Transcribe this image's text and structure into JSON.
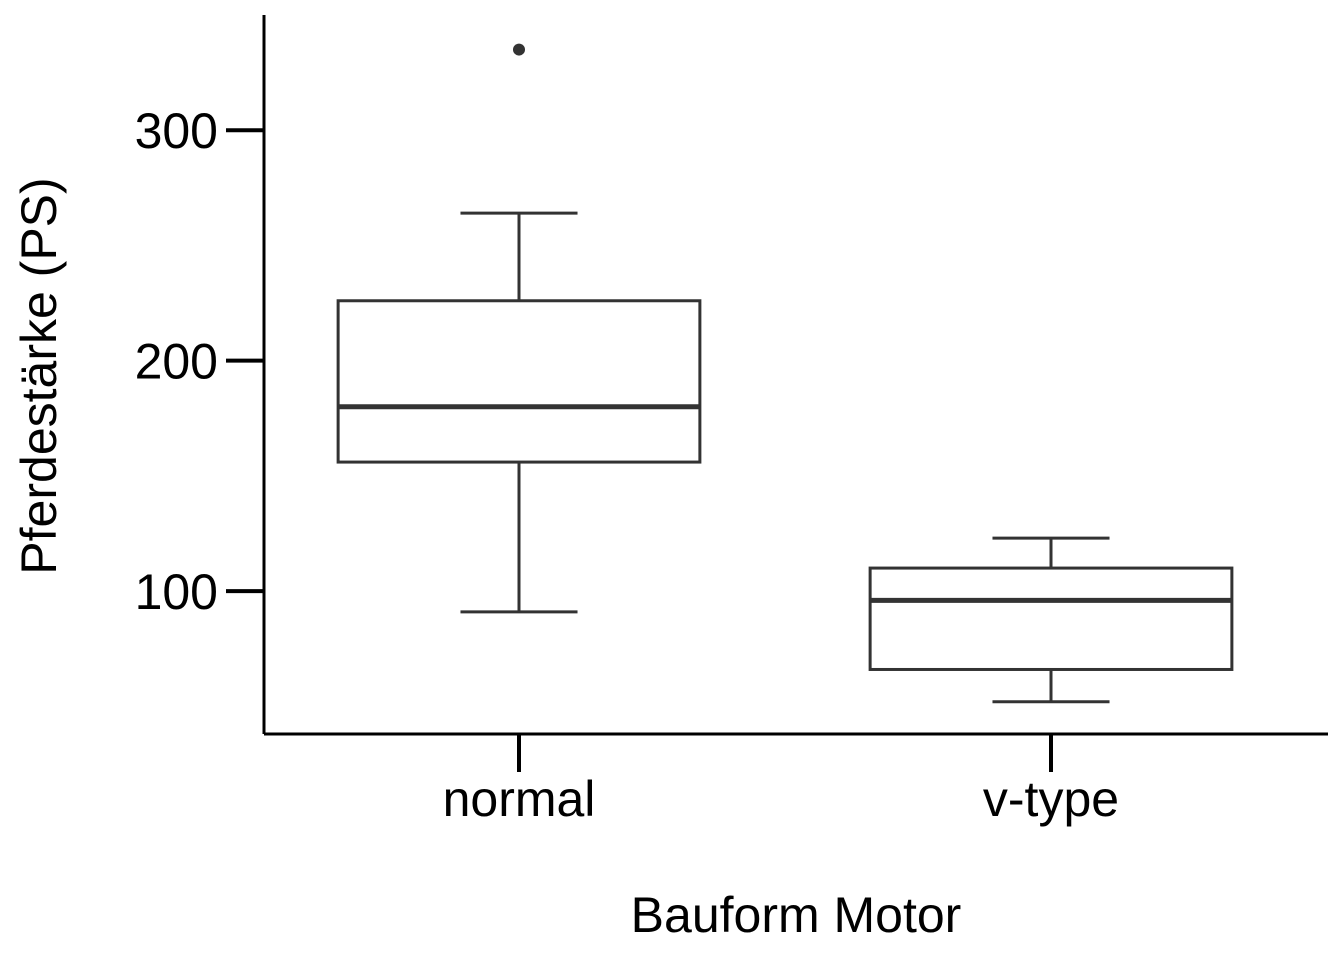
{
  "chart_data": {
    "type": "box",
    "xlabel": "Bauform Motor",
    "ylabel": "Pferdestärke (PS)",
    "ylim": [
      38,
      350
    ],
    "yticks": [
      100,
      200,
      300
    ],
    "categories": [
      "normal",
      "v-type"
    ],
    "boxes": [
      {
        "category": "normal",
        "whisker_low": 91,
        "q1": 156,
        "median": 180,
        "q3": 226,
        "whisker_high": 264,
        "outliers": [
          335
        ]
      },
      {
        "category": "v-type",
        "whisker_low": 52,
        "q1": 66,
        "median": 96,
        "q3": 110,
        "whisker_high": 123,
        "outliers": []
      }
    ],
    "grid": false,
    "legend": "none",
    "colors": {
      "line": "#333333",
      "axis": "#000000",
      "fill": "#ffffff"
    }
  }
}
